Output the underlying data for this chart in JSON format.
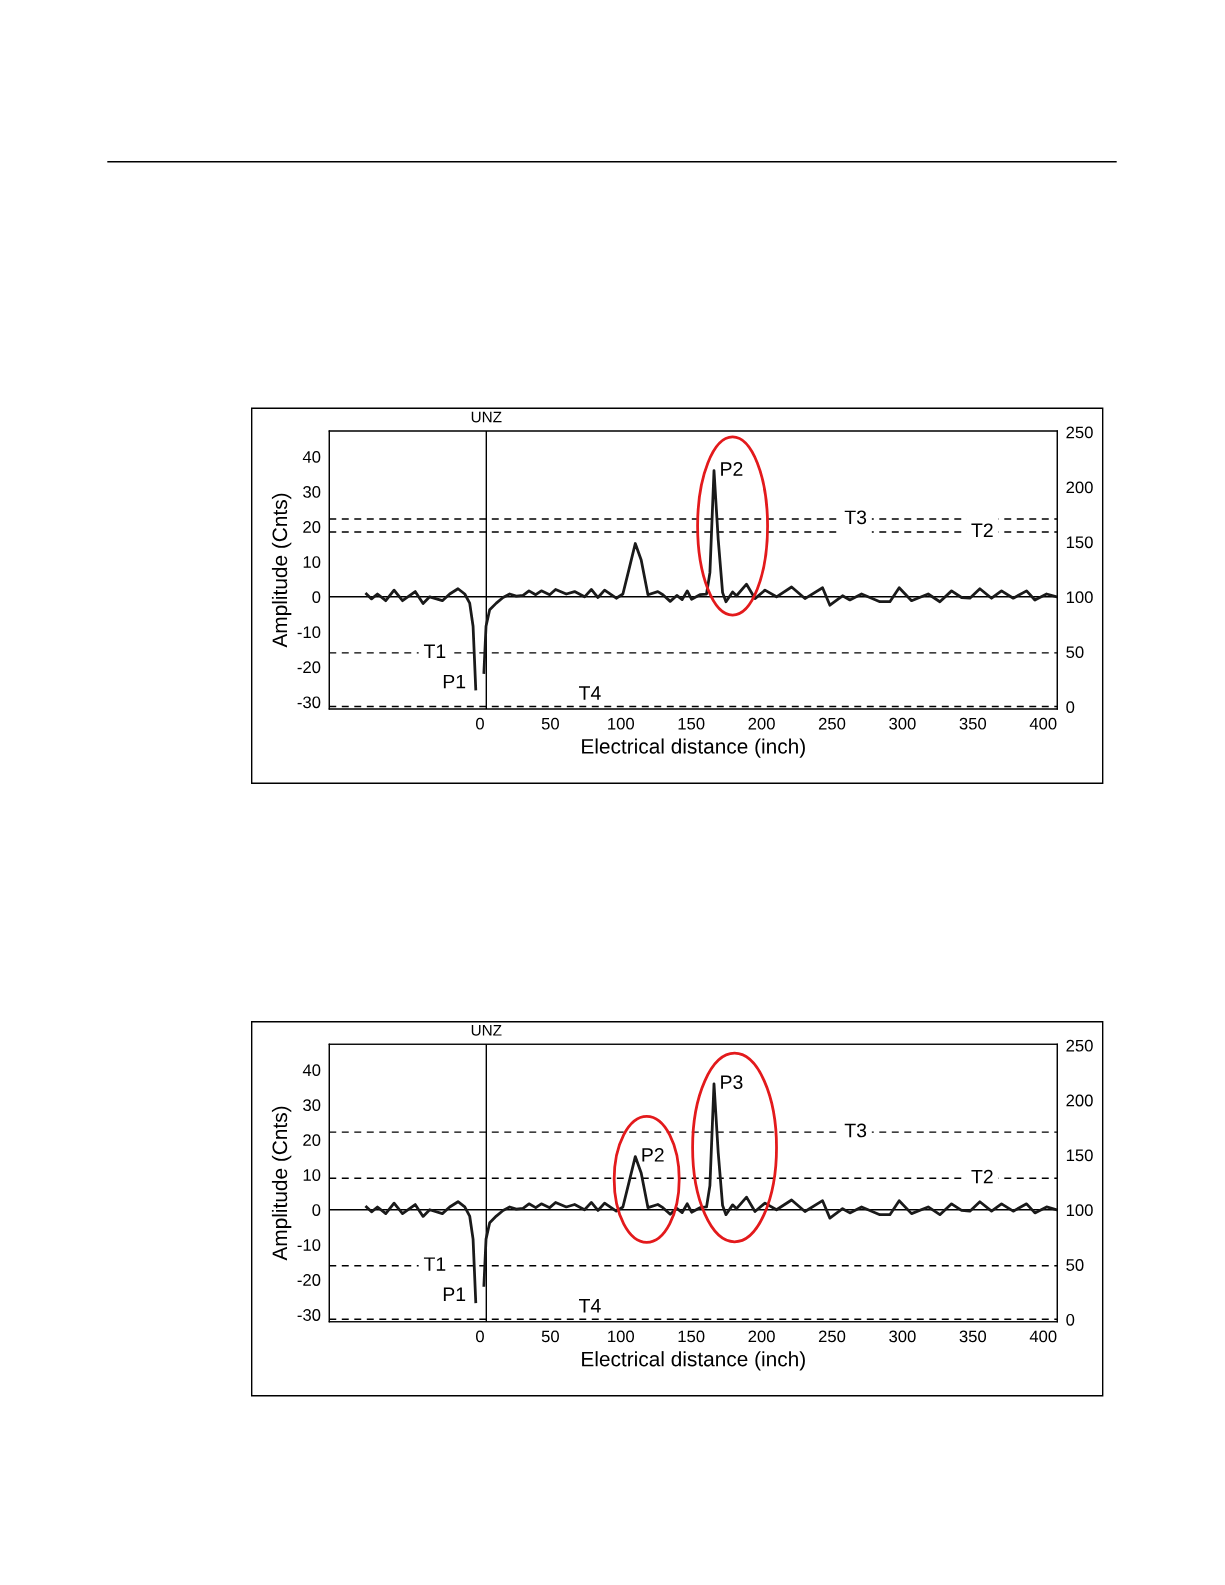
{
  "chart_data": [
    {
      "type": "line",
      "xlabel": "Electrical distance (inch)",
      "ylabel": "Amplitude (Cnts)",
      "xlim": [
        -107,
        410
      ],
      "xticks": [
        0,
        50,
        100,
        150,
        200,
        250,
        300,
        350,
        400
      ],
      "ylim": [
        -32,
        47.3
      ],
      "yticks": [
        -30,
        -20,
        -10,
        0,
        10,
        20,
        30,
        40
      ],
      "y2lim": [
        -2,
        251
      ],
      "y2ticks": [
        0,
        50,
        100,
        150,
        200,
        250
      ],
      "line_style": "solid",
      "marker": "none",
      "series": [
        {
          "color": "#1a1a1a",
          "x": [
            -80.6,
            -77,
            -72.8,
            -66.9,
            -61,
            -55,
            -46,
            -40.4,
            -35.7,
            -26.7,
            -21.5,
            -15.6,
            -10.8,
            -7.3,
            -4.9,
            -3.0,
            -1.6,
            1.4,
            2.8,
            4.3,
            6.9,
            11.6,
            16.4,
            21.1,
            25.8,
            30.6,
            34.8,
            39.6,
            43.6,
            49.5,
            53.7,
            61.3,
            67.2,
            74.3,
            79.1,
            83.8,
            88.5,
            96.8,
            101.5,
            106.3,
            110.3,
            114.5,
            119.3,
            126.3,
            129.9,
            135.1,
            139.8,
            143.6,
            147.2,
            150.3,
            156.2,
            160.9,
            163.3,
            166.2,
            169.2,
            172.3,
            174.7,
            179.4,
            182.2,
            189.3,
            195.3,
            202.4,
            210.6,
            221.3,
            230.8,
            243.3,
            248.5,
            257.5,
            262.7,
            271.0,
            284.0,
            291.1,
            297.7,
            306.5,
            318.3,
            326.6,
            334.9,
            342.0,
            347.9,
            355.0,
            363.3,
            370.4,
            378.7,
            388.2,
            394.1,
            402.4,
            409.5
          ],
          "values": [
            0.8,
            -0.6,
            0.8,
            -1.1,
            1.9,
            -1.1,
            1.5,
            -1.9,
            0,
            -1.1,
            0.8,
            2.3,
            0.8,
            -1.8,
            -8.4,
            -26.3,
            null,
            null,
            -21.6,
            -8.4,
            -3.7,
            -1.8,
            -0.2,
            0.8,
            0.2,
            0.4,
            1.7,
            0.6,
            1.7,
            0.6,
            2.1,
            0.8,
            1.5,
            0,
            2.1,
            -0.2,
            1.9,
            -0.4,
            0.8,
            8.6,
            15.2,
            10.5,
            0.6,
            1.5,
            0.6,
            -1.3,
            0.4,
            -0.8,
            1.7,
            -0.7,
            0.6,
            0.8,
            6.9,
            36.0,
            16.3,
            1.2,
            -1.4,
            1.4,
            0.3,
            3.6,
            -0.5,
            1.9,
            0,
            2.8,
            -0.5,
            2.6,
            -2.4,
            0.3,
            -0.9,
            0.8,
            -1.4,
            -1.4,
            2.6,
            -1.1,
            0.8,
            -1.4,
            1.7,
            -0.2,
            -0.4,
            2.3,
            -0.4,
            1.7,
            -0.4,
            1.7,
            -0.9,
            0.8,
            0
          ]
        }
      ],
      "ref_lines": [
        {
          "axis": "y",
          "value": 0,
          "label": null,
          "color": "#000000",
          "line_style": "solid"
        },
        {
          "axis": "x",
          "value": 4.5,
          "label": "UNZ",
          "color": "#000000",
          "line_style": "solid"
        },
        {
          "axis": "y",
          "value": -16,
          "label": "T1",
          "color": "#000000",
          "line_style": "dashed"
        },
        {
          "axis": "y",
          "value": 18.5,
          "label": "T2",
          "color": "#000000",
          "line_style": "dashed"
        },
        {
          "axis": "y",
          "value": 22.2,
          "label": "T3",
          "color": "#000000",
          "line_style": "dashed"
        },
        {
          "axis": "y",
          "value": -31.3,
          "label": "T4",
          "color": "#000000",
          "line_style": "dashed"
        }
      ],
      "annotations": [
        {
          "text": "P1",
          "x": 0,
          "y": -32
        },
        {
          "text": "P2",
          "x": 166.2,
          "y": 36.0
        }
      ]
    },
    {
      "type": "line",
      "xlabel": "Electrical distance (inch)",
      "ylabel": "Amplitude (Cnts)",
      "xlim": [
        -107,
        410
      ],
      "xticks": [
        0,
        50,
        100,
        150,
        200,
        250,
        300,
        350,
        400
      ],
      "ylim": [
        -32,
        47.3
      ],
      "yticks": [
        -30,
        -20,
        -10,
        0,
        10,
        20,
        30,
        40
      ],
      "y2lim": [
        -2,
        251
      ],
      "y2ticks": [
        0,
        50,
        100,
        150,
        200,
        250
      ],
      "line_style": "solid",
      "marker": "none",
      "series": [
        {
          "color": "#1a1a1a",
          "x": [
            -80.6,
            -77,
            -72.8,
            -66.9,
            -61,
            -55,
            -46,
            -40.4,
            -35.7,
            -26.7,
            -21.5,
            -15.6,
            -10.8,
            -7.3,
            -4.9,
            -3.0,
            -1.6,
            1.4,
            2.8,
            4.3,
            6.9,
            11.6,
            16.4,
            21.1,
            25.8,
            30.6,
            34.8,
            39.6,
            43.6,
            49.5,
            53.7,
            61.3,
            67.2,
            74.3,
            79.1,
            83.8,
            88.5,
            96.8,
            101.5,
            106.3,
            110.3,
            114.5,
            119.3,
            126.3,
            129.9,
            135.1,
            139.8,
            143.6,
            147.2,
            150.3,
            156.2,
            160.9,
            163.3,
            166.2,
            169.2,
            172.3,
            174.7,
            179.4,
            182.2,
            189.3,
            195.3,
            202.4,
            210.6,
            221.3,
            230.8,
            243.3,
            248.5,
            257.5,
            262.7,
            271.0,
            284.0,
            291.1,
            297.7,
            306.5,
            318.3,
            326.6,
            334.9,
            342.0,
            347.9,
            355.0,
            363.3,
            370.4,
            378.7,
            388.2,
            394.1,
            402.4,
            409.5
          ],
          "values": [
            0.8,
            -0.6,
            0.8,
            -1.1,
            1.9,
            -1.1,
            1.5,
            -1.9,
            0,
            -1.1,
            0.8,
            2.3,
            0.8,
            -1.8,
            -8.4,
            -26.3,
            null,
            null,
            -21.6,
            -8.4,
            -3.7,
            -1.8,
            -0.2,
            0.8,
            0.2,
            0.4,
            1.7,
            0.6,
            1.7,
            0.6,
            2.1,
            0.8,
            1.5,
            0,
            2.1,
            -0.2,
            1.9,
            -0.4,
            0.8,
            8.6,
            15.2,
            10.5,
            0.6,
            1.5,
            0.6,
            -1.3,
            0.4,
            -0.8,
            1.7,
            -0.7,
            0.6,
            0.8,
            6.9,
            36.0,
            16.3,
            1.2,
            -1.4,
            1.4,
            0.3,
            3.6,
            -0.5,
            1.9,
            0,
            2.8,
            -0.5,
            2.6,
            -2.4,
            0.3,
            -0.9,
            0.8,
            -1.4,
            -1.4,
            2.6,
            -1.1,
            0.8,
            -1.4,
            1.7,
            -0.2,
            -0.4,
            2.3,
            -0.4,
            1.7,
            -0.4,
            1.7,
            -0.9,
            0.8,
            0
          ]
        }
      ],
      "ref_lines": [
        {
          "axis": "y",
          "value": 0,
          "label": null,
          "color": "#000000",
          "line_style": "solid"
        },
        {
          "axis": "x",
          "value": 4.5,
          "label": "UNZ",
          "color": "#000000",
          "line_style": "solid"
        },
        {
          "axis": "y",
          "value": -16,
          "label": "T1",
          "color": "#000000",
          "line_style": "dashed"
        },
        {
          "axis": "y",
          "value": 9,
          "label": "T2",
          "color": "#000000",
          "line_style": "dashed"
        },
        {
          "axis": "y",
          "value": 22.2,
          "label": "T3",
          "color": "#000000",
          "line_style": "dashed"
        },
        {
          "axis": "y",
          "value": -31.3,
          "label": "T4",
          "color": "#000000",
          "line_style": "dashed"
        }
      ],
      "annotations": [
        {
          "text": "P1",
          "x": 0,
          "y": -32
        },
        {
          "text": "P2",
          "x": 110.3,
          "y": 15.2
        },
        {
          "text": "P3",
          "x": 166.2,
          "y": 36.0
        }
      ]
    }
  ]
}
